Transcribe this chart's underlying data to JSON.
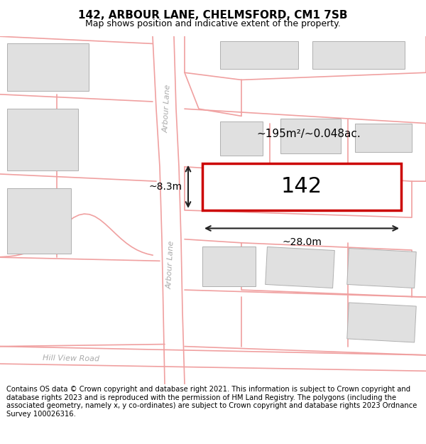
{
  "title": "142, ARBOUR LANE, CHELMSFORD, CM1 7SB",
  "subtitle": "Map shows position and indicative extent of the property.",
  "footer": "Contains OS data © Crown copyright and database right 2021. This information is subject to Crown copyright and database rights 2023 and is reproduced with the permission of HM Land Registry. The polygons (including the associated geometry, namely x, y co-ordinates) are subject to Crown copyright and database rights 2023 Ordnance Survey 100026316.",
  "map_bg": "#ffffff",
  "parcel_line_color": "#f0a0a0",
  "building_fill": "#e0e0e0",
  "building_outline": "#b0b0b0",
  "highlight_fill": "#ffffff",
  "highlight_outline": "#cc0000",
  "label_142": "142",
  "area_label": "~195m²/~0.048ac.",
  "dim_width": "~28.0m",
  "dim_height": "~8.3m",
  "street_label_arb1": "Arbour Lane",
  "street_label_arb2": "Arbour Lane",
  "street_label_hill": "Hill View Road",
  "title_fontsize": 11,
  "subtitle_fontsize": 9,
  "footer_fontsize": 7.2
}
